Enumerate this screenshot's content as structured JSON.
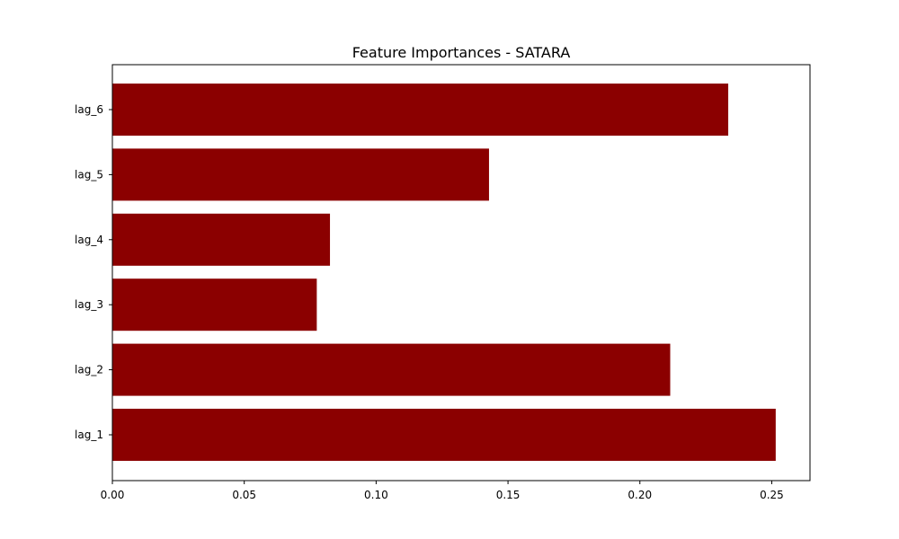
{
  "chart_data": {
    "type": "bar",
    "orientation": "horizontal",
    "title": "Feature Importances - SATARA",
    "xlabel": "",
    "ylabel": "",
    "categories": [
      "lag_1",
      "lag_2",
      "lag_3",
      "lag_4",
      "lag_5",
      "lag_6"
    ],
    "values": [
      0.2515,
      0.2115,
      0.0775,
      0.0825,
      0.1428,
      0.2335
    ],
    "xlim": [
      0,
      0.2645
    ],
    "xticks": [
      0.0,
      0.05,
      0.1,
      0.15,
      0.2,
      0.25
    ],
    "xtick_labels": [
      "0.00",
      "0.05",
      "0.10",
      "0.15",
      "0.20",
      "0.25"
    ],
    "bar_color": "#8b0000",
    "grid": false,
    "legend": "none"
  }
}
